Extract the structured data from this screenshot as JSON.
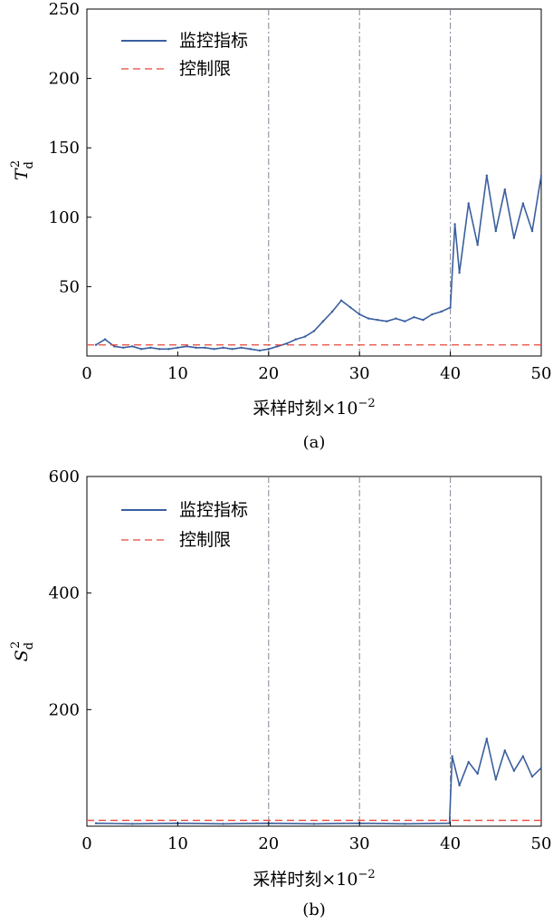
{
  "chart_data": [
    {
      "type": "line",
      "panel_label": "(a)",
      "ylabel_main": "T",
      "ylabel_sup": "2",
      "ylabel_sub": "d",
      "xlabel": "采样时刻×10",
      "xlabel_exp": "−2",
      "xlim": [
        0,
        50
      ],
      "ylim": [
        0,
        250
      ],
      "xticks": [
        "0",
        "10",
        "20",
        "30",
        "40",
        "50"
      ],
      "xtick_values": [
        0,
        10,
        20,
        30,
        40,
        50
      ],
      "yticks": [
        "50",
        "100",
        "150",
        "200",
        "250"
      ],
      "ytick_values": [
        50,
        100,
        150,
        200,
        250
      ],
      "vlines": [
        20,
        30,
        40
      ],
      "control_limit": 8,
      "legend": {
        "placement": "top-left",
        "entries": [
          "监控指标",
          "控制限"
        ]
      },
      "series": [
        {
          "name": "监控指标",
          "color": "#3a5f9e",
          "points": [
            [
              1,
              8
            ],
            [
              2,
              12
            ],
            [
              3,
              7
            ],
            [
              4,
              6
            ],
            [
              5,
              7
            ],
            [
              6,
              5
            ],
            [
              7,
              6
            ],
            [
              8,
              5
            ],
            [
              9,
              5
            ],
            [
              10,
              6
            ],
            [
              11,
              7
            ],
            [
              12,
              6
            ],
            [
              13,
              6
            ],
            [
              14,
              5
            ],
            [
              15,
              6
            ],
            [
              16,
              5
            ],
            [
              17,
              6
            ],
            [
              18,
              5
            ],
            [
              19,
              4
            ],
            [
              20,
              5
            ],
            [
              21,
              7
            ],
            [
              22,
              9
            ],
            [
              23,
              12
            ],
            [
              24,
              14
            ],
            [
              25,
              18
            ],
            [
              26,
              25
            ],
            [
              27,
              32
            ],
            [
              28,
              40
            ],
            [
              29,
              35
            ],
            [
              30,
              30
            ],
            [
              31,
              27
            ],
            [
              32,
              26
            ],
            [
              33,
              25
            ],
            [
              34,
              27
            ],
            [
              35,
              25
            ],
            [
              36,
              28
            ],
            [
              37,
              26
            ],
            [
              38,
              30
            ],
            [
              39,
              32
            ],
            [
              40,
              35
            ],
            [
              40.5,
              95
            ],
            [
              41,
              60
            ],
            [
              42,
              110
            ],
            [
              43,
              80
            ],
            [
              44,
              130
            ],
            [
              45,
              90
            ],
            [
              46,
              120
            ],
            [
              47,
              85
            ],
            [
              48,
              110
            ],
            [
              49,
              90
            ],
            [
              50,
              130
            ]
          ]
        },
        {
          "name": "控制限",
          "color": "#e8463a",
          "style": "dashed",
          "value": 8
        }
      ]
    },
    {
      "type": "line",
      "panel_label": "(b)",
      "ylabel_main": "S",
      "ylabel_sup": "2",
      "ylabel_sub": "d",
      "xlabel": "采样时刻×10",
      "xlabel_exp": "−2",
      "xlim": [
        0,
        50
      ],
      "ylim": [
        0,
        600
      ],
      "xticks": [
        "0",
        "10",
        "20",
        "30",
        "40",
        "50"
      ],
      "xtick_values": [
        0,
        10,
        20,
        30,
        40,
        50
      ],
      "yticks": [
        "200",
        "400",
        "600"
      ],
      "ytick_values": [
        200,
        400,
        600
      ],
      "vlines": [
        20,
        30,
        40
      ],
      "control_limit": 10,
      "legend": {
        "placement": "top-left",
        "entries": [
          "监控指标",
          "控制限"
        ]
      },
      "series": [
        {
          "name": "监控指标",
          "color": "#3a5f9e",
          "points": [
            [
              1,
              5
            ],
            [
              5,
              4
            ],
            [
              10,
              5
            ],
            [
              15,
              4
            ],
            [
              20,
              5
            ],
            [
              25,
              4
            ],
            [
              30,
              5
            ],
            [
              35,
              4
            ],
            [
              39.9,
              5
            ],
            [
              40.2,
              120
            ],
            [
              41,
              70
            ],
            [
              42,
              110
            ],
            [
              43,
              90
            ],
            [
              44,
              150
            ],
            [
              45,
              80
            ],
            [
              46,
              130
            ],
            [
              47,
              95
            ],
            [
              48,
              120
            ],
            [
              49,
              85
            ],
            [
              50,
              100
            ]
          ]
        },
        {
          "name": "控制限",
          "color": "#e8463a",
          "style": "dashed",
          "value": 10
        }
      ]
    }
  ]
}
